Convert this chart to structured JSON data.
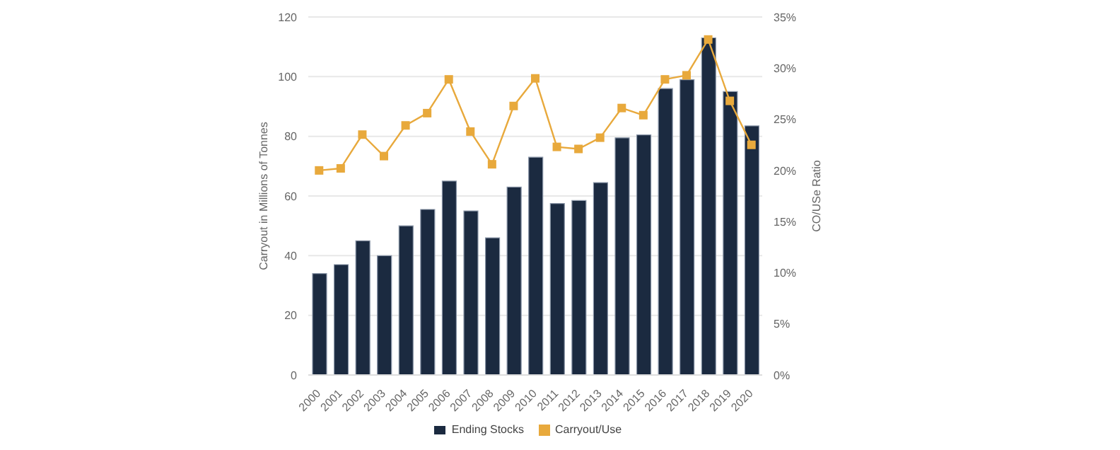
{
  "chart_data": {
    "type": "bar",
    "categories": [
      "2000",
      "2001",
      "2002",
      "2003",
      "2004",
      "2005",
      "2006",
      "2007",
      "2008",
      "2009",
      "2010",
      "2011",
      "2012",
      "2013",
      "2014",
      "2015",
      "2016",
      "2017",
      "2018",
      "2019",
      "2020"
    ],
    "series": [
      {
        "name": "Ending Stocks",
        "color": "#1b2a40",
        "values": [
          34,
          37,
          45,
          40,
          50,
          55.5,
          65,
          55,
          46,
          63,
          73,
          57.5,
          58.5,
          64.5,
          79.5,
          80.5,
          96,
          99,
          113,
          95,
          83.5
        ]
      },
      {
        "name": "Carryout/Use",
        "type": "line",
        "axis": "y2",
        "color": "#e8a93c",
        "values": [
          20,
          20.2,
          23.5,
          21.4,
          24.4,
          25.6,
          28.9,
          23.8,
          20.6,
          26.3,
          29,
          22.3,
          22.1,
          23.2,
          26.1,
          25.4,
          28.9,
          29.3,
          32.8,
          26.8,
          22.5
        ]
      }
    ],
    "ylabel": "Carryout in Millions of Tonnes",
    "y2label": "CO/USe Ratio",
    "ylim": [
      0,
      120
    ],
    "yticks": [
      0,
      20,
      40,
      60,
      80,
      100,
      120
    ],
    "y2lim": [
      0,
      35
    ],
    "y2ticks": [
      {
        "value": 0,
        "label": "0%"
      },
      {
        "value": 5,
        "label": "5%"
      },
      {
        "value": 10,
        "label": "10%"
      },
      {
        "value": 15,
        "label": "15%"
      },
      {
        "value": 20,
        "label": "20%"
      },
      {
        "value": 25,
        "label": "25%"
      },
      {
        "value": 30,
        "label": "30%"
      },
      {
        "value": 35,
        "label": "35%"
      }
    ],
    "grid": "y",
    "legend": "bottom",
    "marker": "square"
  }
}
